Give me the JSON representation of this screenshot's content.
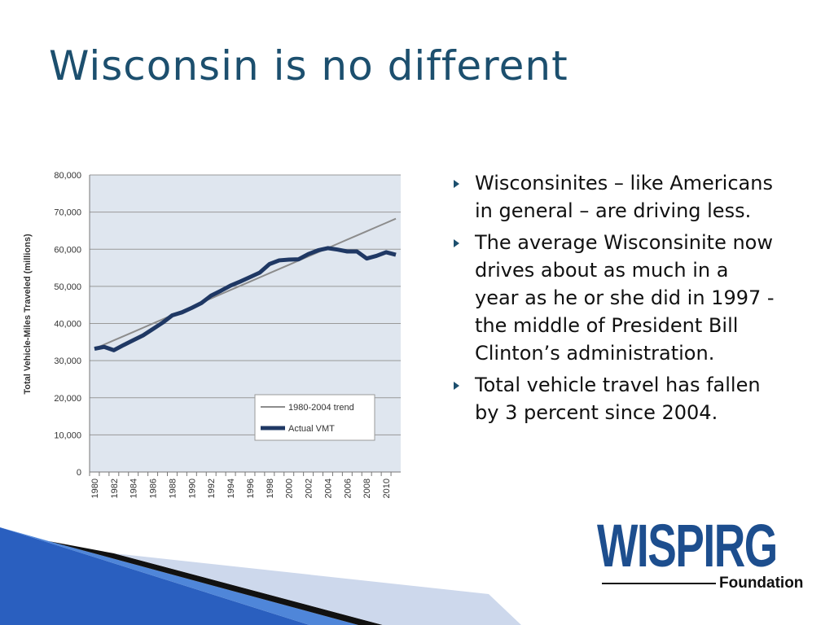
{
  "slide_title": "Wisconsin is no different",
  "chart_data": {
    "type": "line",
    "y_label": "Total Vehicle-Miles Traveled (millions)",
    "categories": [
      "1980",
      null,
      "1982",
      null,
      "1984",
      null,
      "1986",
      null,
      "1988",
      null,
      "1990",
      null,
      "1992",
      null,
      "1994",
      null,
      "1996",
      null,
      "1998",
      null,
      "2000",
      null,
      "2002",
      null,
      "2004",
      null,
      "2006",
      null,
      "2008",
      null,
      "2010",
      null
    ],
    "series": [
      {
        "name": "1980-2004 trend",
        "color": "#8c8c8c",
        "values": [
          33200,
          34330,
          35460,
          36590,
          37720,
          38850,
          39980,
          41110,
          42240,
          43370,
          44500,
          45630,
          46760,
          47890,
          49020,
          50150,
          51280,
          52410,
          53540,
          54670,
          55800,
          56930,
          58060,
          59190,
          60320,
          61450,
          62580,
          63710,
          64840,
          65970,
          67100,
          68230
        ]
      },
      {
        "name": "Actual VMT",
        "color": "#1f3864",
        "values": [
          33200,
          33700,
          32800,
          34200,
          35500,
          36800,
          38500,
          40200,
          42200,
          43000,
          44200,
          45500,
          47500,
          48800,
          50200,
          51300,
          52500,
          53700,
          56000,
          57000,
          57200,
          57300,
          58700,
          59700,
          60300,
          59900,
          59400,
          59400,
          57500,
          58200,
          59200,
          58500
        ]
      }
    ],
    "ylim": [
      0,
      80000
    ],
    "yticks": [
      0,
      {
        "value": 10000,
        "label": "10,000"
      },
      {
        "value": 20000,
        "label": "20,000"
      },
      {
        "value": 30000,
        "label": "30,000"
      },
      {
        "value": 40000,
        "label": "40,000"
      },
      {
        "value": 50000,
        "label": "50,000"
      },
      {
        "value": 60000,
        "label": "60,000"
      },
      {
        "value": 70000,
        "label": "70,000"
      },
      {
        "value": 80000,
        "label": "80,000"
      }
    ],
    "grid": true
  },
  "bullets": [
    "Wisconsinites – like Americans in general – are driving less.",
    "The average Wisconsinite now drives about as much in a year as he or she did in 1997 - the middle of President Bill Clinton’s administration.",
    "Total vehicle travel has fallen by 3 percent since 2004."
  ],
  "logo": {
    "name": "WISPIRG",
    "sub": "Foundation"
  }
}
